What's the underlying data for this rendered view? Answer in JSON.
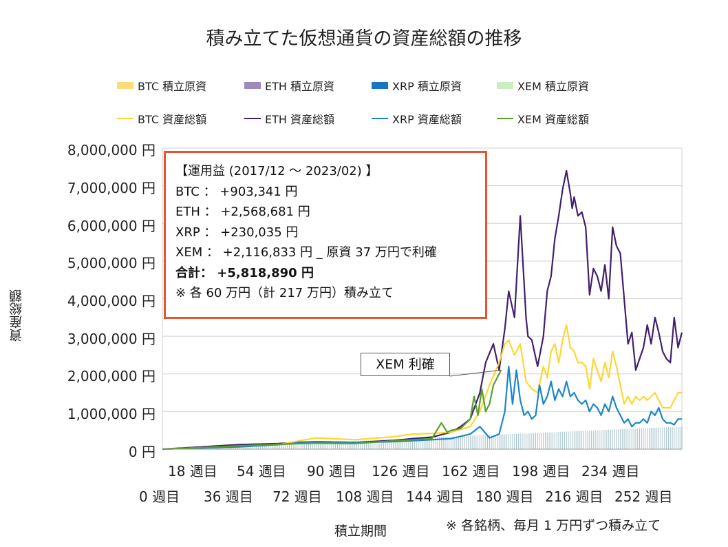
{
  "chart_data": {
    "type": "line",
    "title": "積み立てた仮想通貨の資産総額の推移",
    "xlabel": "積立期間",
    "ylabel": "資産総額",
    "ylim": [
      0,
      8000000
    ],
    "y_ticks": [
      "8,000,000 円",
      "7,000,000 円",
      "6,000,000 円",
      "5,000,000 円",
      "4,000,000 円",
      "3,000,000 円",
      "2,000,000 円",
      "1,000,000 円",
      "0 円"
    ],
    "x_ticks_upper": [
      "18 週目",
      "54 週目",
      "90 週目",
      "126 週目",
      "162 週目",
      "198 週目",
      "234 週目"
    ],
    "x_ticks_lower": [
      "0 週目",
      "36 週目",
      "72 週目",
      "108 週目",
      "144 週目",
      "180 週目",
      "216 週目",
      "252 週目"
    ],
    "xlim": [
      0,
      270
    ],
    "grid": true,
    "legend_position": "top",
    "legend_bars": [
      "BTC  積立原資",
      "ETH  積立原資",
      "XRP  積立原資",
      "XEM  積立原資"
    ],
    "legend_lines": [
      "BTC  資産総額",
      "ETH  資産総額",
      "XRP  資産総額",
      "XEM  資産総額"
    ],
    "colors": {
      "btc": "#ffd633",
      "btc_bar": "#f9dd7a",
      "eth": "#3f1f6e",
      "eth_bar": "#9f8ac0",
      "xrp": "#1a86c8",
      "xrp_bar": "#1777c4",
      "xem": "#5a9e2a",
      "xem_bar": "#c9efbf",
      "principal_fill": "#5b8f9e",
      "grid": "#d0d0d0",
      "box_border": "#e8542c"
    },
    "series": [
      {
        "name": "ETH  資産総額",
        "key": "eth",
        "x": [
          0,
          20,
          40,
          60,
          70,
          80,
          100,
          120,
          130,
          140,
          150,
          155,
          160,
          165,
          168,
          172,
          175,
          178,
          180,
          183,
          186,
          189,
          190,
          192,
          195,
          198,
          200,
          202,
          204,
          206,
          208,
          210,
          212,
          213,
          214,
          216,
          218,
          220,
          222,
          224,
          226,
          228,
          230,
          232,
          234,
          236,
          238,
          240,
          242,
          244,
          246,
          248,
          250,
          252,
          254,
          256,
          258,
          260,
          262,
          264,
          266,
          268,
          270
        ],
        "values": [
          0,
          60000,
          120000,
          150000,
          180000,
          200000,
          180000,
          230000,
          280000,
          320000,
          450000,
          600000,
          800000,
          1500000,
          2300000,
          2800000,
          2100000,
          3200000,
          4200000,
          3500000,
          6200000,
          3500000,
          3000000,
          2900000,
          2200000,
          3000000,
          4200000,
          4600000,
          5600000,
          6200000,
          6900000,
          7400000,
          6800000,
          6400000,
          6700000,
          6200000,
          6300000,
          5900000,
          4100000,
          4800000,
          4600000,
          4200000,
          4900000,
          4000000,
          5900000,
          5400000,
          5200000,
          4000000,
          2800000,
          3100000,
          2100000,
          2400000,
          2700000,
          3300000,
          2800000,
          3500000,
          3100000,
          2600000,
          2400000,
          2300000,
          3500000,
          2700000,
          3100000
        ]
      },
      {
        "name": "BTC  資産総額",
        "key": "btc",
        "x": [
          0,
          20,
          40,
          60,
          80,
          100,
          120,
          130,
          140,
          150,
          160,
          165,
          170,
          175,
          178,
          180,
          183,
          186,
          189,
          192,
          195,
          198,
          200,
          202,
          204,
          206,
          208,
          210,
          212,
          214,
          216,
          218,
          220,
          222,
          224,
          226,
          228,
          230,
          232,
          234,
          236,
          238,
          240,
          242,
          244,
          246,
          248,
          250,
          252,
          254,
          256,
          258,
          260,
          262,
          264,
          266,
          268,
          270
        ],
        "values": [
          0,
          40000,
          80000,
          120000,
          300000,
          250000,
          330000,
          400000,
          420000,
          450000,
          600000,
          1000000,
          1700000,
          2300000,
          2800000,
          2900000,
          2500000,
          2800000,
          1800000,
          1600000,
          1500000,
          2200000,
          1900000,
          2600000,
          2800000,
          2300000,
          2900000,
          3300000,
          2700000,
          2600000,
          2300000,
          2300000,
          2200000,
          1600000,
          2400000,
          2100000,
          1800000,
          2300000,
          1900000,
          2600000,
          2200000,
          1700000,
          1200000,
          1400000,
          1200000,
          1400000,
          1300000,
          1400000,
          1300000,
          1400000,
          1500000,
          1300000,
          1100000,
          1100000,
          1100000,
          1300000,
          1500000,
          1500000
        ]
      },
      {
        "name": "XRP  資産総額",
        "key": "xrp",
        "x": [
          0,
          20,
          40,
          60,
          80,
          100,
          120,
          140,
          150,
          160,
          165,
          170,
          175,
          178,
          180,
          182,
          184,
          186,
          188,
          190,
          192,
          194,
          196,
          198,
          200,
          202,
          204,
          206,
          208,
          210,
          212,
          214,
          216,
          218,
          220,
          222,
          224,
          226,
          228,
          230,
          232,
          234,
          236,
          238,
          240,
          242,
          244,
          246,
          248,
          250,
          252,
          254,
          256,
          258,
          260,
          262,
          264,
          266,
          268,
          270
        ],
        "values": [
          0,
          30000,
          60000,
          120000,
          200000,
          180000,
          200000,
          250000,
          280000,
          400000,
          600000,
          300000,
          400000,
          1000000,
          2200000,
          1200000,
          2100000,
          1300000,
          900000,
          1000000,
          800000,
          900000,
          1700000,
          1200000,
          1400000,
          1800000,
          1300000,
          1600000,
          1400000,
          1800000,
          1400000,
          1500000,
          1300000,
          1200000,
          1300000,
          1000000,
          1200000,
          1100000,
          900000,
          1200000,
          1000000,
          1400000,
          1100000,
          900000,
          700000,
          800000,
          600000,
          700000,
          700000,
          800000,
          700000,
          1000000,
          900000,
          1100000,
          800000,
          700000,
          700000,
          650000,
          800000,
          800000
        ]
      },
      {
        "name": "XEM  資産総額",
        "key": "xem",
        "x": [
          0,
          20,
          40,
          60,
          80,
          100,
          120,
          130,
          140,
          145,
          148,
          150,
          155,
          160,
          162,
          164,
          166,
          168,
          170,
          172,
          174,
          176
        ],
        "values": [
          0,
          40000,
          90000,
          130000,
          160000,
          150000,
          220000,
          250000,
          280000,
          700000,
          450000,
          500000,
          550000,
          800000,
          1400000,
          900000,
          1600000,
          1000000,
          1200000,
          1700000,
          1900000,
          2100000
        ]
      }
    ],
    "principal": {
      "name": "積立原資",
      "x_end": 270,
      "value_end": 600000
    }
  },
  "infobox": {
    "line1": "【運用益 (2017/12 ～ 2023/02) 】",
    "line2": "BTC ： +903,341 円",
    "line3": "ETH ： +2,568,681 円",
    "line4": "XRP ： +230,035 円",
    "line5": "XEM ： +2,116,833 円 _ 原資 37 万円で利確",
    "line6": "合計： +5,818,890 円",
    "line7": "※ 各 60 万円（計 217 万円）積み立て"
  },
  "callout": "XEM 利確",
  "note": "※ 各銘柄、毎月 1 万円ずつ積み立て"
}
